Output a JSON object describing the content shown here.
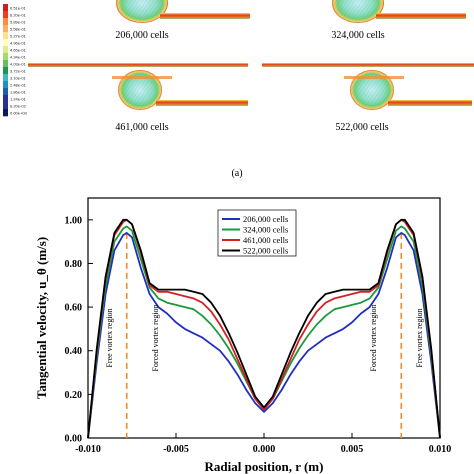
{
  "contour_panel": {
    "colorbar_labels": [
      "6.51e-01",
      "6.20e-01",
      "5.89e-01",
      "5.58e-01",
      "5.27e-01",
      "4.96e-01",
      "4.65e-01",
      "4.34e-01",
      "4.03e-01",
      "3.72e-01",
      "3.10e-01",
      "2.48e-01",
      "1.86e-01",
      "1.24e-01",
      "6.20e-02",
      "0.00e+00"
    ],
    "colorbar_colors": [
      "#d7191c",
      "#f03b20",
      "#fd8d3c",
      "#fdae61",
      "#fee08b",
      "#ffffbf",
      "#d9ef8b",
      "#a6d96a",
      "#66bd63",
      "#1a9850",
      "#41b6c4",
      "#1d91c0",
      "#225ea8",
      "#253494",
      "#2b2f8f",
      "#081d58"
    ],
    "captions": [
      "206,000 cells",
      "324,000 cells",
      "461,000 cells",
      "522,000 cells"
    ],
    "panel_label": "(a)"
  },
  "chart_data": {
    "type": "line",
    "xlabel": "Radial position, r (m)",
    "ylabel": "Tangential velocity, u_θ (m/s)",
    "xlim": [
      -0.01,
      0.01
    ],
    "ylim": [
      0,
      1.1
    ],
    "xticks": [
      -0.01,
      -0.005,
      0.0,
      0.005,
      0.01
    ],
    "xtick_labels": [
      "-0.010",
      "-0.005",
      "0.000",
      "0.005",
      "0.010"
    ],
    "yticks": [
      0,
      0.2,
      0.4,
      0.6,
      0.8,
      1.0
    ],
    "ytick_labels": [
      "0.00",
      "0.20",
      "0.40",
      "0.60",
      "0.80",
      "1.00"
    ],
    "legend_position": "top-center",
    "annotations": [
      {
        "text": "Free vortex region",
        "x": -0.0088
      },
      {
        "text": "Forced vortex region",
        "x": -0.0062
      },
      {
        "text": "Forced vortex region",
        "x": 0.0062
      },
      {
        "text": "Free vortex region",
        "x": 0.0088
      }
    ],
    "dashed_lines_x": [
      -0.0078,
      0.0078
    ],
    "x": [
      -0.01,
      -0.0095,
      -0.009,
      -0.0085,
      -0.008,
      -0.0078,
      -0.0075,
      -0.007,
      -0.0065,
      -0.006,
      -0.0055,
      -0.005,
      -0.0045,
      -0.004,
      -0.0035,
      -0.003,
      -0.0025,
      -0.002,
      -0.0015,
      -0.001,
      -0.0005,
      0.0,
      0.0005,
      0.001,
      0.0015,
      0.002,
      0.0025,
      0.003,
      0.0035,
      0.004,
      0.0045,
      0.005,
      0.0055,
      0.006,
      0.0065,
      0.007,
      0.0075,
      0.0078,
      0.008,
      0.0085,
      0.009,
      0.0095,
      0.01
    ],
    "series": [
      {
        "name": "206,000 cells",
        "color": "#1f2fbf",
        "values": [
          0.0,
          0.35,
          0.66,
          0.86,
          0.93,
          0.94,
          0.92,
          0.78,
          0.66,
          0.6,
          0.57,
          0.53,
          0.5,
          0.48,
          0.46,
          0.43,
          0.4,
          0.35,
          0.29,
          0.22,
          0.16,
          0.12,
          0.16,
          0.22,
          0.29,
          0.35,
          0.4,
          0.43,
          0.46,
          0.48,
          0.5,
          0.53,
          0.57,
          0.6,
          0.66,
          0.78,
          0.92,
          0.94,
          0.93,
          0.86,
          0.66,
          0.35,
          0.0
        ]
      },
      {
        "name": "324,000 cells",
        "color": "#1a9a3a",
        "values": [
          0.0,
          0.38,
          0.7,
          0.9,
          0.96,
          0.97,
          0.95,
          0.82,
          0.69,
          0.64,
          0.62,
          0.61,
          0.6,
          0.59,
          0.56,
          0.52,
          0.47,
          0.41,
          0.34,
          0.26,
          0.18,
          0.13,
          0.18,
          0.26,
          0.34,
          0.41,
          0.47,
          0.52,
          0.56,
          0.59,
          0.6,
          0.61,
          0.62,
          0.64,
          0.69,
          0.82,
          0.95,
          0.97,
          0.96,
          0.9,
          0.7,
          0.38,
          0.0
        ]
      },
      {
        "name": "461,000 cells",
        "color": "#d42020",
        "values": [
          0.0,
          0.4,
          0.73,
          0.93,
          0.99,
          1.0,
          0.98,
          0.85,
          0.7,
          0.67,
          0.67,
          0.66,
          0.65,
          0.64,
          0.62,
          0.58,
          0.52,
          0.45,
          0.36,
          0.27,
          0.18,
          0.13,
          0.18,
          0.27,
          0.36,
          0.45,
          0.52,
          0.58,
          0.62,
          0.64,
          0.65,
          0.66,
          0.67,
          0.67,
          0.7,
          0.85,
          0.98,
          1.0,
          0.99,
          0.93,
          0.73,
          0.4,
          0.0
        ]
      },
      {
        "name": "522,000 cells",
        "color": "#000000",
        "values": [
          0.0,
          0.41,
          0.74,
          0.94,
          1.0,
          1.0,
          0.98,
          0.86,
          0.71,
          0.68,
          0.68,
          0.68,
          0.68,
          0.67,
          0.66,
          0.62,
          0.56,
          0.48,
          0.39,
          0.29,
          0.19,
          0.14,
          0.19,
          0.29,
          0.39,
          0.48,
          0.56,
          0.62,
          0.66,
          0.67,
          0.68,
          0.68,
          0.68,
          0.68,
          0.71,
          0.86,
          0.98,
          1.0,
          1.0,
          0.94,
          0.74,
          0.41,
          0.0
        ]
      }
    ]
  }
}
